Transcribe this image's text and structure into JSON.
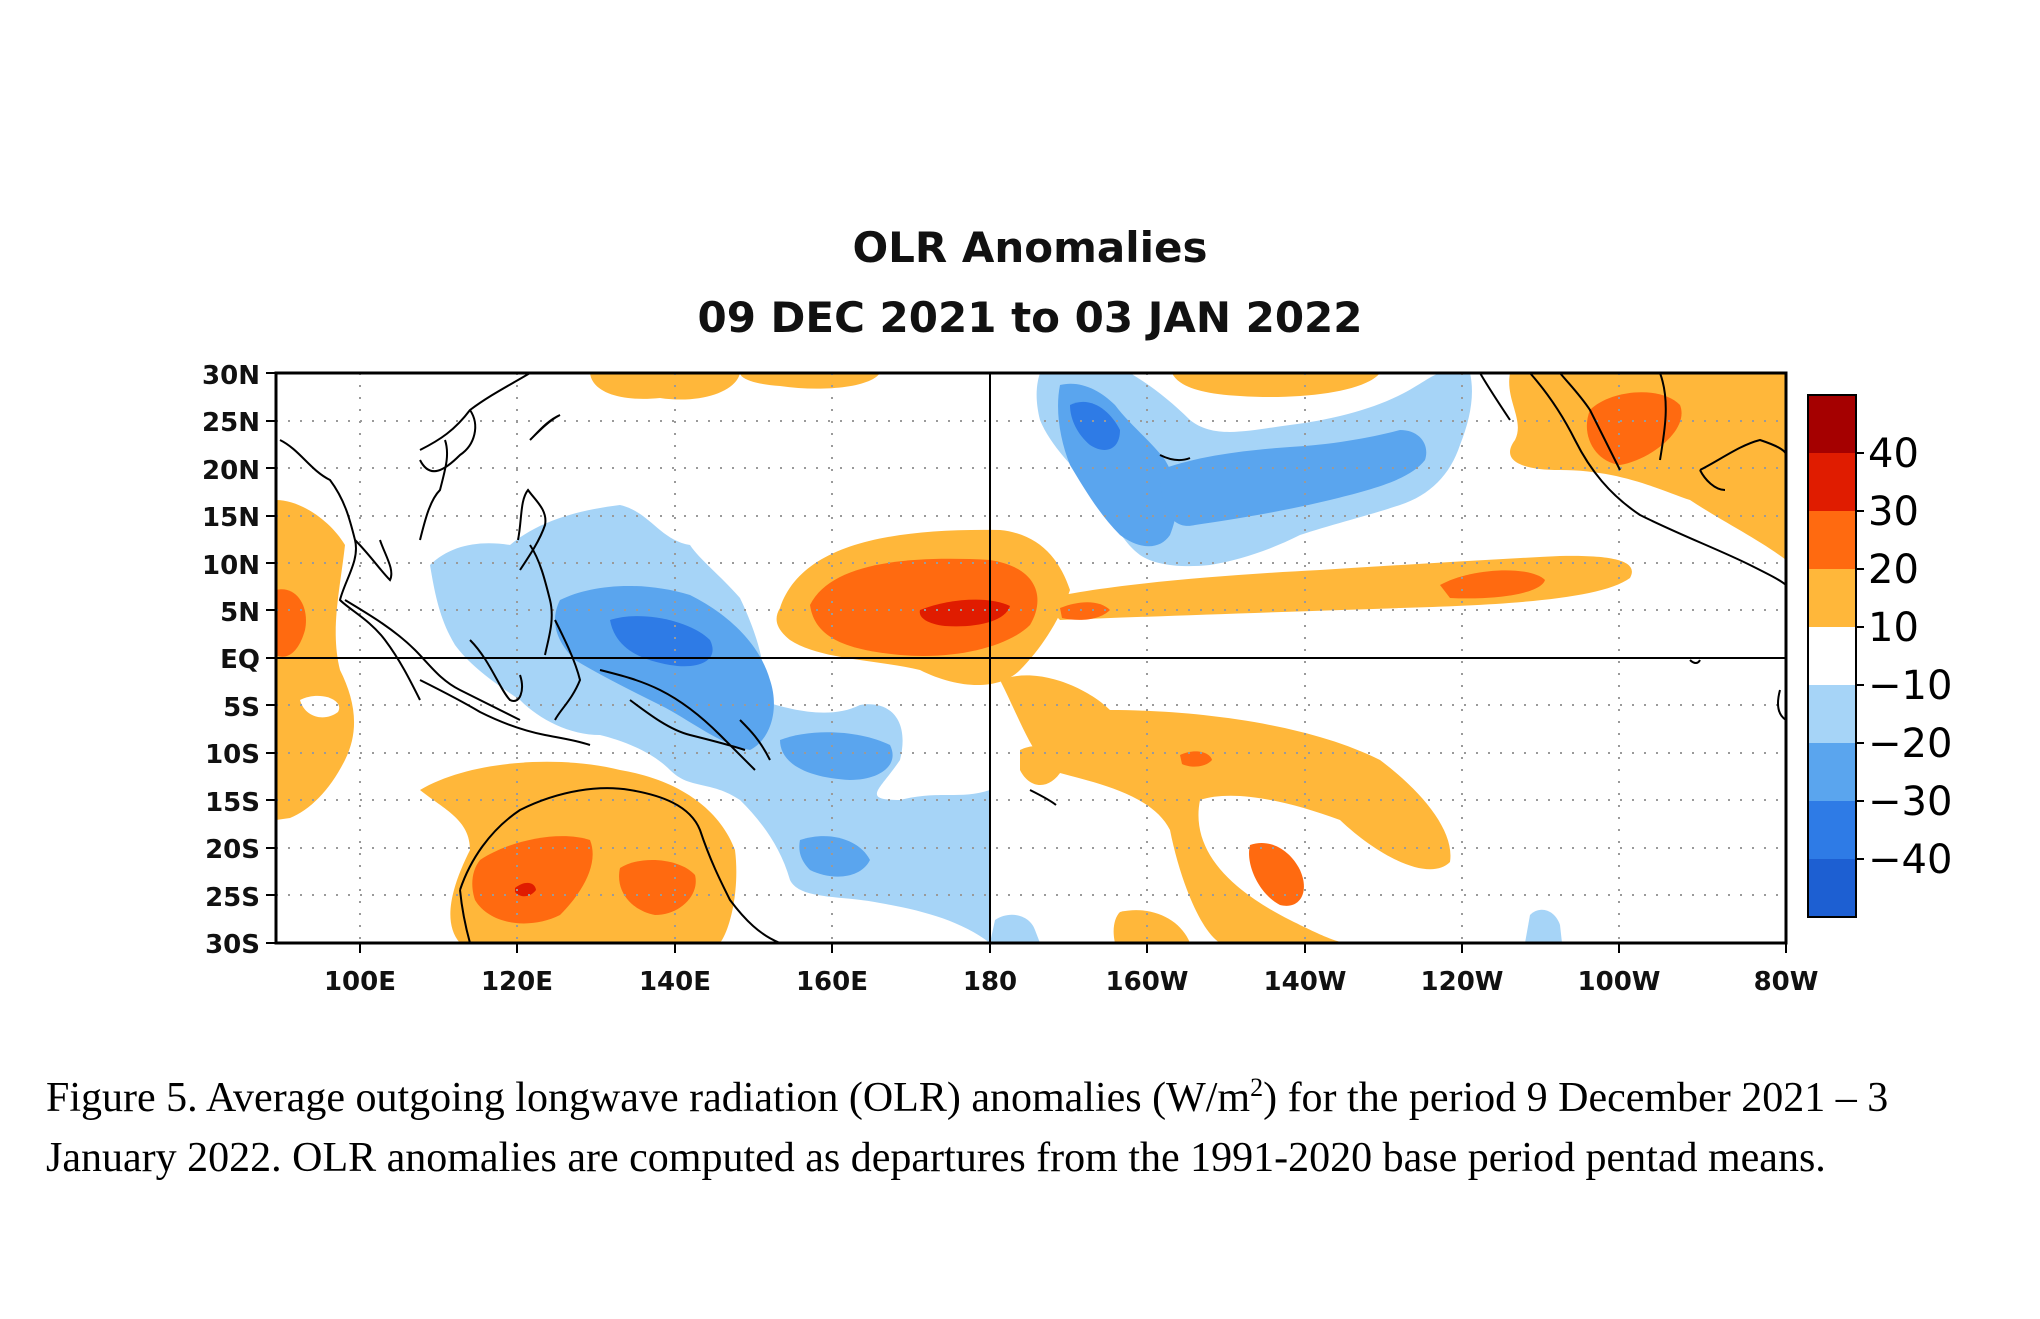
{
  "map": {
    "title_line1": "OLR Anomalies",
    "title_line2": "09 DEC 2021 to 03 JAN 2022",
    "lat_labels": [
      "30N",
      "25N",
      "20N",
      "15N",
      "10N",
      "5N",
      "EQ",
      "5S",
      "10S",
      "15S",
      "20S",
      "25S",
      "30S"
    ],
    "lon_labels": [
      "100E",
      "120E",
      "140E",
      "160E",
      "180",
      "160W",
      "140W",
      "120W",
      "100W",
      "80W"
    ],
    "colorbar": {
      "labels": [
        "40",
        "30",
        "20",
        "10",
        "−10",
        "−20",
        "−30",
        "−40"
      ],
      "colors": [
        "#a50000",
        "#e01c00",
        "#ff6a10",
        "#ffb73a",
        "#ffffff",
        "#a6d4f7",
        "#5aa5ee",
        "#2e7be6",
        "#1d5fd2"
      ]
    },
    "anomaly_colors": {
      "pos10": "#ffb73a",
      "pos20": "#ff6a10",
      "pos30": "#e01c00",
      "neg10": "#a6d4f7",
      "neg20": "#5aa5ee",
      "neg30": "#2e7be6"
    }
  },
  "caption": {
    "part1": "Figure 5. Average outgoing longwave radiation (OLR) anomalies (W/m",
    "sup": "2",
    "part2": ") for the period 9 December 2021 – 3 January 2022.  OLR anomalies are computed as departures from the 1991-2020 base period pentad means."
  }
}
